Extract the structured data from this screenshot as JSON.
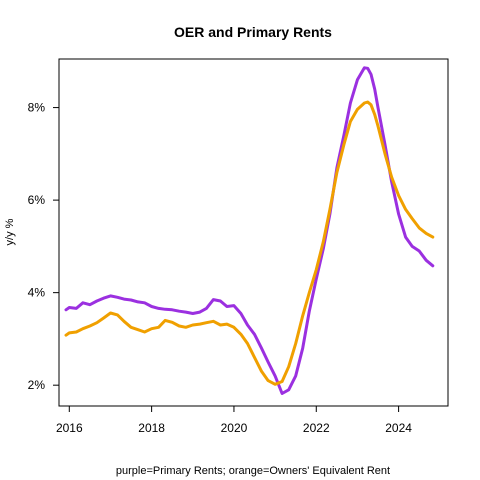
{
  "chart_data": {
    "type": "line",
    "title": "OER and Primary Rents",
    "xlabel": "purple=Primary Rents; orange=Owners' Equivalent Rent",
    "ylabel": "y/y %",
    "xlim": [
      2015.75,
      2025.2
    ],
    "ylim": [
      1.55,
      9.05
    ],
    "x_ticks": [
      2016,
      2018,
      2020,
      2022,
      2024
    ],
    "x_tick_labels": [
      "2016",
      "2018",
      "2020",
      "2022",
      "2024"
    ],
    "y_ticks": [
      2,
      4,
      6,
      8
    ],
    "y_tick_labels": [
      "2%",
      "4%",
      "6%",
      "8%"
    ],
    "grid": false,
    "series": [
      {
        "color": "#9b30e0",
        "x": [
          2015.92,
          2016.0,
          2016.17,
          2016.33,
          2016.5,
          2016.67,
          2016.83,
          2017.0,
          2017.17,
          2017.33,
          2017.5,
          2017.67,
          2017.83,
          2018.0,
          2018.17,
          2018.33,
          2018.5,
          2018.67,
          2018.83,
          2019.0,
          2019.17,
          2019.33,
          2019.5,
          2019.67,
          2019.83,
          2020.0,
          2020.17,
          2020.33,
          2020.5,
          2020.67,
          2020.83,
          2021.0,
          2021.17,
          2021.33,
          2021.5,
          2021.67,
          2021.83,
          2022.0,
          2022.17,
          2022.33,
          2022.5,
          2022.67,
          2022.83,
          2023.0,
          2023.17,
          2023.25,
          2023.33,
          2023.42,
          2023.5,
          2023.67,
          2023.83,
          2024.0,
          2024.17,
          2024.33,
          2024.5,
          2024.67,
          2024.83
        ],
        "values": [
          3.63,
          3.68,
          3.66,
          3.78,
          3.74,
          3.82,
          3.88,
          3.93,
          3.9,
          3.86,
          3.84,
          3.8,
          3.78,
          3.7,
          3.66,
          3.64,
          3.63,
          3.6,
          3.58,
          3.55,
          3.58,
          3.66,
          3.85,
          3.82,
          3.7,
          3.72,
          3.55,
          3.3,
          3.1,
          2.8,
          2.5,
          2.2,
          1.82,
          1.9,
          2.2,
          2.8,
          3.6,
          4.3,
          4.95,
          5.7,
          6.7,
          7.4,
          8.1,
          8.6,
          8.86,
          8.85,
          8.72,
          8.4,
          8.0,
          7.2,
          6.4,
          5.7,
          5.2,
          5.0,
          4.9,
          4.7,
          4.58
        ]
      },
      {
        "color": "#f0a000",
        "x": [
          2015.92,
          2016.0,
          2016.17,
          2016.33,
          2016.5,
          2016.67,
          2016.83,
          2017.0,
          2017.17,
          2017.33,
          2017.5,
          2017.67,
          2017.83,
          2018.0,
          2018.17,
          2018.33,
          2018.5,
          2018.67,
          2018.83,
          2019.0,
          2019.17,
          2019.33,
          2019.5,
          2019.67,
          2019.83,
          2020.0,
          2020.17,
          2020.33,
          2020.5,
          2020.67,
          2020.83,
          2021.0,
          2021.17,
          2021.33,
          2021.5,
          2021.67,
          2021.83,
          2022.0,
          2022.17,
          2022.33,
          2022.5,
          2022.67,
          2022.83,
          2023.0,
          2023.17,
          2023.25,
          2023.33,
          2023.42,
          2023.5,
          2023.67,
          2023.83,
          2024.0,
          2024.17,
          2024.33,
          2024.5,
          2024.67,
          2024.83
        ],
        "values": [
          3.08,
          3.13,
          3.15,
          3.22,
          3.28,
          3.35,
          3.45,
          3.56,
          3.52,
          3.38,
          3.25,
          3.2,
          3.15,
          3.22,
          3.25,
          3.4,
          3.36,
          3.28,
          3.25,
          3.3,
          3.32,
          3.35,
          3.38,
          3.3,
          3.32,
          3.25,
          3.1,
          2.9,
          2.6,
          2.3,
          2.1,
          2.02,
          2.08,
          2.4,
          2.9,
          3.5,
          4.0,
          4.5,
          5.1,
          5.8,
          6.6,
          7.2,
          7.7,
          7.96,
          8.1,
          8.12,
          8.06,
          7.85,
          7.6,
          7.0,
          6.5,
          6.1,
          5.8,
          5.6,
          5.4,
          5.28,
          5.2
        ]
      }
    ]
  }
}
